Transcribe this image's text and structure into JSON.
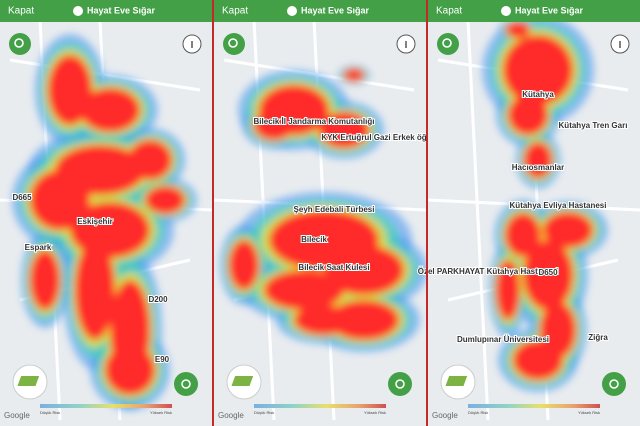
{
  "panels": [
    {
      "header": {
        "close": "Kapat",
        "title": "Hayat Eve Sığar"
      },
      "map_labels": [
        "Eskişehir",
        "Espark",
        "D665",
        "D200",
        "E90"
      ],
      "legend": {
        "low": "Düşük Risk",
        "high": "Yüksek Risk"
      },
      "attribution": "Google"
    },
    {
      "header": {
        "close": "Kapat",
        "title": "Hayat Eve Sığar"
      },
      "map_labels": [
        "Bilecik İl Jandarma Komutanlığı",
        "KYK Ertuğrul Gazi Erkek öğ",
        "Şeyh Edebali Türbesi",
        "Bilecik",
        "Bilecik Saat Kulesi"
      ],
      "legend": {
        "low": "Düşük Risk",
        "high": "Yüksek Risk"
      },
      "attribution": "Google"
    },
    {
      "header": {
        "close": "Kapat",
        "title": "Hayat Eve Sığar"
      },
      "map_labels": [
        "Kütahya",
        "Kütahya Tren Garı",
        "Hacıosmanlar",
        "Kütahya Evliya Hastanesi",
        "Özel PARKHAYAT Kütahya Hastanesi",
        "D650",
        "Dumlupınar Üniversitesi",
        "Ziğra"
      ],
      "legend": {
        "low": "Düşük Risk",
        "high": "Yüksek Risk"
      },
      "attribution": "Google"
    }
  ]
}
